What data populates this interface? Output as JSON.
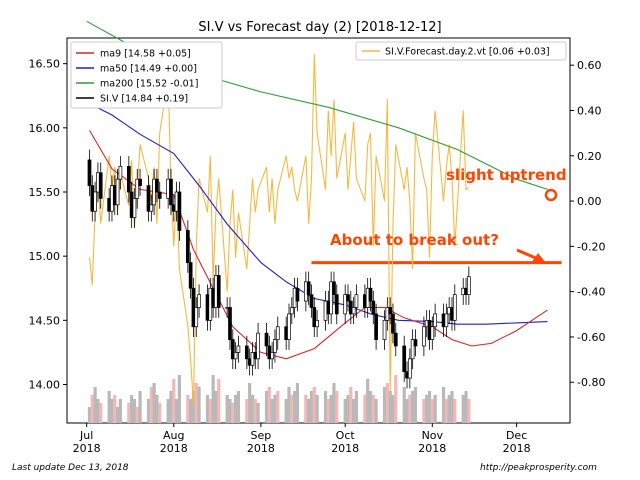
{
  "chart_data": {
    "type": "candlestick",
    "title": "SI.V vs Forecast day (2)  [2018-12-12]",
    "xlabel": "",
    "ylabel": "",
    "x_ticks": [
      {
        "label1": "Jul",
        "label2": "2018",
        "date": "2018-07-01"
      },
      {
        "label1": "Aug",
        "label2": "2018",
        "date": "2018-08-01"
      },
      {
        "label1": "Sep",
        "label2": "2018",
        "date": "2018-09-01"
      },
      {
        "label1": "Oct",
        "label2": "2018",
        "date": "2018-10-01"
      },
      {
        "label1": "Nov",
        "label2": "2018",
        "date": "2018-11-01"
      },
      {
        "label1": "Dec",
        "label2": "2018",
        "date": "2018-12-01"
      }
    ],
    "x_range": [
      "2018-06-24",
      "2018-12-20"
    ],
    "y_left": {
      "range": [
        13.7,
        16.7
      ],
      "ticks": [
        "14.00",
        "14.50",
        "15.00",
        "15.50",
        "16.00",
        "16.50"
      ]
    },
    "y_right": {
      "range": [
        -0.98,
        0.72
      ],
      "ticks": [
        "-0.80",
        "-0.60",
        "-0.40",
        "-0.20",
        "0.00",
        "0.20",
        "0.40",
        "0.60"
      ]
    },
    "legend_left": {
      "placement": "top-left",
      "entries": [
        {
          "label": "ma9 [14.58 +0.05]",
          "color": "#d62728"
        },
        {
          "label": "ma50 [14.49 +0.00]",
          "color": "#1f1fcc"
        },
        {
          "label": "ma200 [15.52 -0.01]",
          "color": "#2ca02c"
        },
        {
          "label": "SI.V [14.84 +0.19]",
          "color": "#000000"
        }
      ]
    },
    "legend_right": {
      "placement": "top-right",
      "entries": [
        {
          "label": "SI.V.Forecast.day.2.vt [0.06 +0.03]",
          "color": "#f5b942"
        }
      ]
    },
    "annotations": {
      "slight_uptrend": "slight uptrend",
      "about_to_break_out": "About to break out?"
    },
    "resistance_level": 14.95,
    "ma200": {
      "dates": [
        "2018-07-01",
        "2018-07-20",
        "2018-08-10",
        "2018-09-01",
        "2018-09-25",
        "2018-10-20",
        "2018-11-10",
        "2018-12-01",
        "2018-12-12"
      ],
      "values": [
        16.83,
        16.6,
        16.42,
        16.28,
        16.16,
        16.0,
        15.83,
        15.6,
        15.52
      ]
    },
    "ma50": {
      "dates": [
        "2018-07-01",
        "2018-07-10",
        "2018-07-20",
        "2018-08-01",
        "2018-08-10",
        "2018-08-20",
        "2018-09-01",
        "2018-09-10",
        "2018-09-20",
        "2018-10-01",
        "2018-10-10",
        "2018-10-20",
        "2018-11-01",
        "2018-11-10",
        "2018-11-20",
        "2018-12-01",
        "2018-12-12"
      ],
      "values": [
        16.2,
        16.1,
        15.95,
        15.8,
        15.55,
        15.25,
        14.95,
        14.8,
        14.67,
        14.62,
        14.55,
        14.5,
        14.49,
        14.47,
        14.47,
        14.48,
        14.49
      ]
    },
    "ma9": {
      "dates": [
        "2018-07-02",
        "2018-07-10",
        "2018-07-20",
        "2018-08-01",
        "2018-08-08",
        "2018-08-15",
        "2018-08-22",
        "2018-09-01",
        "2018-09-10",
        "2018-09-20",
        "2018-10-01",
        "2018-10-08",
        "2018-10-15",
        "2018-10-22",
        "2018-11-01",
        "2018-11-08",
        "2018-11-15",
        "2018-11-22",
        "2018-12-01",
        "2018-12-12"
      ],
      "values": [
        15.98,
        15.68,
        15.52,
        15.48,
        15.05,
        14.75,
        14.45,
        14.25,
        14.2,
        14.28,
        14.48,
        14.6,
        14.6,
        14.52,
        14.45,
        14.35,
        14.3,
        14.32,
        14.42,
        14.58
      ]
    },
    "silver_daily": {
      "start_date": "2018-07-02",
      "open": [
        15.75,
        15.55,
        15.35,
        15.5,
        15.65,
        15.45,
        15.35,
        15.55,
        15.4,
        15.6,
        15.7,
        15.5,
        15.3,
        15.45,
        15.6,
        15.55,
        15.35,
        15.4,
        15.6,
        15.5,
        15.45,
        15.6,
        15.4,
        15.35,
        15.5,
        15.2,
        14.95,
        14.75,
        14.45,
        14.6,
        14.7,
        14.5,
        14.75,
        14.6,
        14.85,
        14.6,
        14.6,
        14.35,
        14.2,
        14.25,
        14.3,
        14.2,
        14.15,
        14.25,
        14.2,
        14.4,
        14.3,
        14.2,
        14.25,
        14.35,
        14.45,
        14.35,
        14.55,
        14.6,
        14.75,
        14.65,
        14.8,
        14.7,
        14.6,
        14.45,
        14.5,
        14.65,
        14.55,
        14.8,
        14.7,
        14.55,
        14.7,
        14.65,
        14.55,
        14.6,
        14.7,
        14.6,
        14.75,
        14.65,
        14.55,
        14.35,
        14.5,
        14.6,
        14.55,
        14.4,
        14.3,
        14.1,
        14.05,
        14.2,
        14.35,
        14.3,
        14.45,
        14.5,
        14.35,
        14.45,
        14.55,
        14.45,
        14.55,
        14.6,
        14.5,
        14.7,
        14.75,
        14.7
      ],
      "close": [
        15.55,
        15.35,
        15.5,
        15.65,
        15.45,
        15.35,
        15.55,
        15.4,
        15.6,
        15.7,
        15.5,
        15.3,
        15.45,
        15.6,
        15.55,
        15.35,
        15.4,
        15.6,
        15.5,
        15.45,
        15.6,
        15.4,
        15.35,
        15.5,
        15.2,
        14.95,
        14.75,
        14.45,
        14.6,
        14.7,
        14.5,
        14.75,
        14.6,
        14.85,
        14.6,
        14.6,
        14.35,
        14.2,
        14.25,
        14.3,
        14.2,
        14.15,
        14.25,
        14.2,
        14.4,
        14.3,
        14.2,
        14.25,
        14.35,
        14.45,
        14.35,
        14.55,
        14.6,
        14.75,
        14.65,
        14.8,
        14.7,
        14.6,
        14.45,
        14.5,
        14.65,
        14.55,
        14.8,
        14.7,
        14.55,
        14.7,
        14.65,
        14.55,
        14.6,
        14.7,
        14.6,
        14.75,
        14.65,
        14.55,
        14.35,
        14.5,
        14.6,
        14.55,
        14.4,
        14.3,
        14.1,
        14.05,
        14.2,
        14.35,
        14.3,
        14.45,
        14.5,
        14.35,
        14.45,
        14.55,
        14.45,
        14.55,
        14.6,
        14.5,
        14.7,
        14.75,
        14.7,
        14.84
      ]
    },
    "volume_bars": {
      "start_date": "2018-07-02",
      "values": [
        0.2,
        0.35,
        0.45,
        0.3,
        0.25,
        0.4,
        0.3,
        0.35,
        0.2,
        0.3,
        0.25,
        0.35,
        0.3,
        0.2,
        0.4,
        0.3,
        0.45,
        0.5,
        0.35,
        0.25,
        0.3,
        0.4,
        0.55,
        0.3,
        0.6,
        0.35,
        0.3,
        0.4,
        0.5,
        0.45,
        0.35,
        0.3,
        0.6,
        0.4,
        0.55,
        0.35,
        0.3,
        0.25,
        0.35,
        0.4,
        0.3,
        0.5,
        0.35,
        0.3,
        0.25,
        0.4,
        0.45,
        0.3,
        0.35,
        0.4,
        0.3,
        0.45,
        0.35,
        0.4,
        0.5,
        0.35,
        0.3,
        0.4,
        0.45,
        0.35,
        0.4,
        0.3,
        0.35,
        0.5,
        0.4,
        0.3,
        0.35,
        0.45,
        0.3,
        0.4,
        0.35,
        0.55,
        0.4,
        0.35,
        0.3,
        0.45,
        0.5,
        0.4,
        0.35,
        0.6,
        0.45,
        0.3,
        0.35,
        0.4,
        0.45,
        0.3,
        0.35,
        0.4,
        0.3,
        0.35,
        0.45,
        0.3,
        0.35,
        0.4,
        0.3,
        0.35,
        0.4,
        0.3
      ]
    },
    "forecast": {
      "start_date": "2018-07-02",
      "values": [
        -0.25,
        -0.37,
        -0.05,
        0.1,
        -0.1,
        0.2,
        0.05,
        0.15,
        -0.05,
        0.12,
        -0.02,
        0.18,
        -0.12,
        0.05,
        0.25,
        0.1,
        0.0,
        0.15,
        -0.1,
        0.3,
        0.55,
        0.05,
        -0.2,
        0.05,
        -0.3,
        -0.55,
        -0.7,
        -0.9,
        -0.2,
        0.1,
        -0.05,
        0.2,
        -0.35,
        -0.05,
        0.1,
        -0.4,
        -0.1,
        0.05,
        -0.25,
        -0.05,
        -0.3,
        -0.1,
        0.1,
        -0.05,
        0.05,
        0.15,
        -0.05,
        0.1,
        -0.1,
        0.05,
        0.2,
        0.1,
        0.15,
        0.05,
        0.0,
        0.2,
        -0.1,
        0.1,
        0.65,
        0.3,
        0.05,
        0.4,
        0.2,
        0.45,
        0.1,
        0.3,
        0.05,
        0.2,
        0.35,
        0.1,
        0.0,
        0.25,
        0.3,
        -0.2,
        0.2,
        0.0,
        0.45,
        -0.85,
        -0.1,
        0.25,
        0.05,
        0.15,
        0.0,
        -0.3,
        0.3,
        0.1,
        0.05,
        -0.25,
        0.2,
        0.4,
        0.0,
        0.15,
        0.25,
        0.1,
        -0.2,
        0.4,
        0.05,
        0.06
      ]
    }
  },
  "footer": {
    "last_update": "Last update Dec 13, 2018",
    "source": "http://peakprosperity.com"
  }
}
